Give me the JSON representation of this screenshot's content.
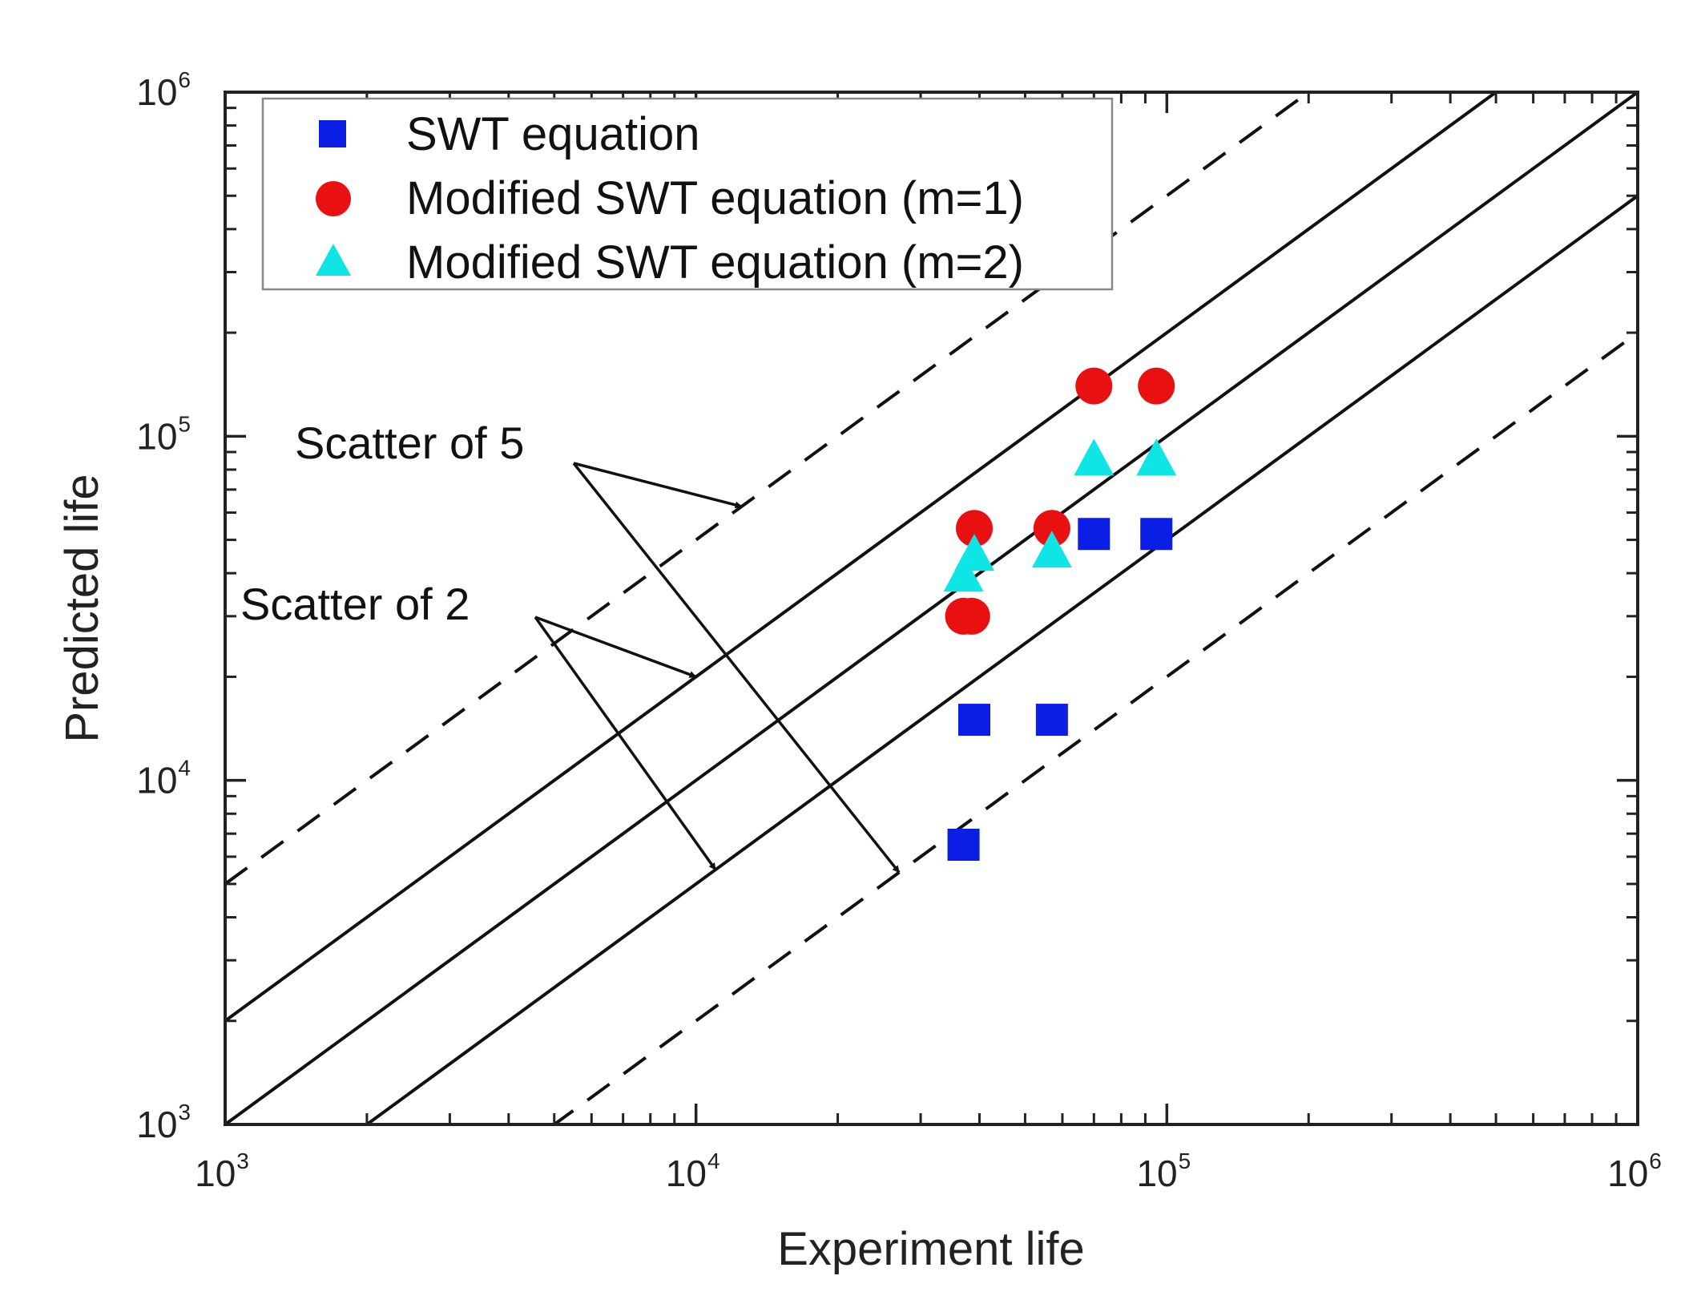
{
  "chart_data": {
    "type": "scatter",
    "title": "",
    "xlabel": "Experiment life",
    "ylabel": "Predicted life",
    "xscale": "log",
    "yscale": "log",
    "xlim": [
      1000,
      1000000
    ],
    "ylim": [
      1000,
      1000000
    ],
    "grid": false,
    "x_ticks": [
      {
        "value": 1000,
        "base": "10",
        "exp": "3"
      },
      {
        "value": 10000,
        "base": "10",
        "exp": "4"
      },
      {
        "value": 100000,
        "base": "10",
        "exp": "5"
      },
      {
        "value": 1000000,
        "base": "10",
        "exp": "6"
      }
    ],
    "y_ticks": [
      {
        "value": 1000,
        "base": "10",
        "exp": "3"
      },
      {
        "value": 10000,
        "base": "10",
        "exp": "4"
      },
      {
        "value": 100000,
        "base": "10",
        "exp": "5"
      },
      {
        "value": 1000000,
        "base": "10",
        "exp": "6"
      }
    ],
    "legend_position": "top-left",
    "series": [
      {
        "name": "SWT equation",
        "marker": "square",
        "color": "#0a1ee6",
        "points": [
          [
            37000,
            6500
          ],
          [
            39000,
            15000
          ],
          [
            57000,
            15000
          ],
          [
            70000,
            52000
          ],
          [
            95000,
            52000
          ]
        ]
      },
      {
        "name": "Modified SWT equation (m=1)",
        "marker": "circle",
        "color": "#e81010",
        "points": [
          [
            37000,
            30000
          ],
          [
            38500,
            30000
          ],
          [
            39000,
            54000
          ],
          [
            57000,
            54000
          ],
          [
            70000,
            140000
          ],
          [
            95000,
            140000
          ]
        ]
      },
      {
        "name": "Modified SWT equation (m=2)",
        "marker": "triangle",
        "color": "#10e5e5",
        "points": [
          [
            37000,
            40000
          ],
          [
            39000,
            46000
          ],
          [
            57000,
            47000
          ],
          [
            70000,
            87000
          ],
          [
            95000,
            87000
          ]
        ]
      }
    ],
    "reference_lines": [
      {
        "name": "ideal-line",
        "factor": 1,
        "style": "solid"
      },
      {
        "name": "scatter-2-upper",
        "factor": 2,
        "style": "solid"
      },
      {
        "name": "scatter-2-lower",
        "factor": 0.5,
        "style": "solid"
      },
      {
        "name": "scatter-5-upper",
        "factor": 5,
        "style": "dashed"
      },
      {
        "name": "scatter-5-lower",
        "factor": 0.2,
        "style": "dashed"
      }
    ],
    "annotations": [
      {
        "name": "scatter-5",
        "text": "Scatter of 5",
        "anchor": [
          9000,
          100000
        ],
        "targets": [
          [
            12500,
            62500
          ],
          [
            27000,
            5400
          ]
        ]
      },
      {
        "name": "scatter-2",
        "text": "Scatter of 2",
        "anchor": [
          7000,
          30000
        ],
        "targets": [
          [
            10000,
            20000
          ],
          [
            11000,
            5500
          ]
        ]
      }
    ]
  }
}
